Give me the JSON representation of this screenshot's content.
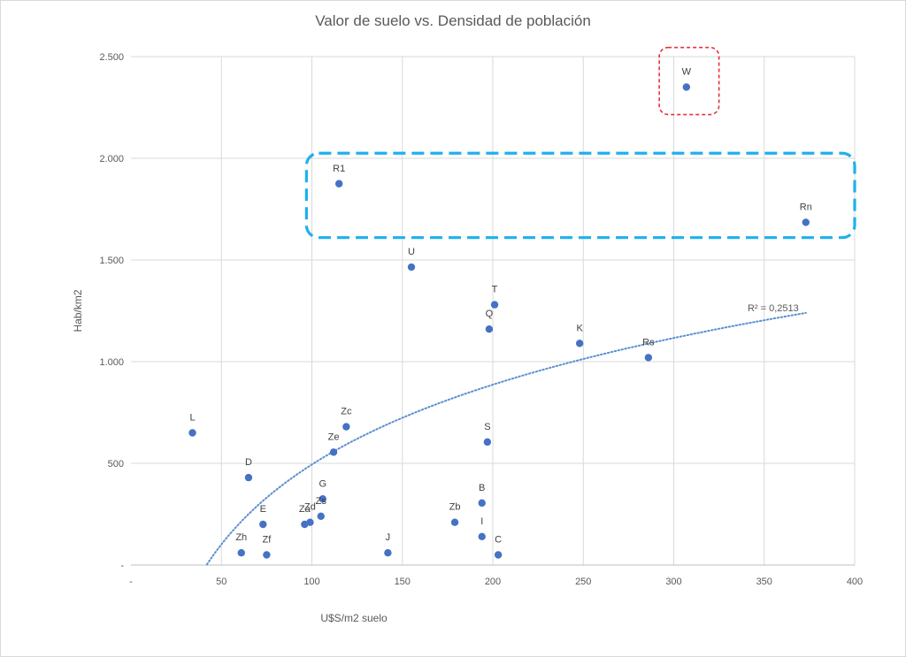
{
  "chart_data": {
    "type": "scatter",
    "title": "Valor de suelo vs. Densidad de población",
    "xlabel": "U$S/m2 suelo",
    "ylabel": "Hab/km2",
    "xlim": [
      0,
      400
    ],
    "ylim": [
      0,
      2500
    ],
    "x_ticks": [
      {
        "value": 0,
        "label": "-"
      },
      {
        "value": 50,
        "label": "50"
      },
      {
        "value": 100,
        "label": "100"
      },
      {
        "value": 150,
        "label": "150"
      },
      {
        "value": 200,
        "label": "200"
      },
      {
        "value": 250,
        "label": "250"
      },
      {
        "value": 300,
        "label": "300"
      },
      {
        "value": 350,
        "label": "350"
      },
      {
        "value": 400,
        "label": "400"
      }
    ],
    "y_ticks": [
      {
        "value": 0,
        "label": "-"
      },
      {
        "value": 500,
        "label": "500"
      },
      {
        "value": 1000,
        "label": "1.000"
      },
      {
        "value": 1500,
        "label": "1.500"
      },
      {
        "value": 2000,
        "label": "2.000"
      },
      {
        "value": 2500,
        "label": "2.500"
      }
    ],
    "grid": true,
    "point_color": "#4472c4",
    "points": [
      {
        "label": "W",
        "x": 307,
        "y": 2350
      },
      {
        "label": "R1",
        "x": 115,
        "y": 1875
      },
      {
        "label": "Rn",
        "x": 373,
        "y": 1685
      },
      {
        "label": "U",
        "x": 155,
        "y": 1465
      },
      {
        "label": "T",
        "x": 201,
        "y": 1280
      },
      {
        "label": "Q",
        "x": 198,
        "y": 1160
      },
      {
        "label": "K",
        "x": 248,
        "y": 1090
      },
      {
        "label": "Rs",
        "x": 286,
        "y": 1020
      },
      {
        "label": "L",
        "x": 34,
        "y": 650
      },
      {
        "label": "Zc",
        "x": 119,
        "y": 680
      },
      {
        "label": "S",
        "x": 197,
        "y": 605
      },
      {
        "label": "Ze",
        "x": 112,
        "y": 555
      },
      {
        "label": "D",
        "x": 65,
        "y": 430
      },
      {
        "label": "G",
        "x": 106,
        "y": 325
      },
      {
        "label": "B",
        "x": 194,
        "y": 305
      },
      {
        "label": "Zs",
        "x": 105,
        "y": 240
      },
      {
        "label": "Zd",
        "x": 99,
        "y": 210
      },
      {
        "label": "Za",
        "x": 96,
        "y": 200
      },
      {
        "label": "E",
        "x": 73,
        "y": 200
      },
      {
        "label": "Zb",
        "x": 179,
        "y": 210
      },
      {
        "label": "I",
        "x": 194,
        "y": 140
      },
      {
        "label": "Zh",
        "x": 61,
        "y": 60
      },
      {
        "label": "Zf",
        "x": 75,
        "y": 50
      },
      {
        "label": "J",
        "x": 142,
        "y": 60
      },
      {
        "label": "C",
        "x": 203,
        "y": 50
      }
    ],
    "trendline": {
      "type": "logarithmic",
      "color": "#5b8fd0",
      "x_range": [
        42,
        373
      ],
      "anchor_points": [
        [
          42,
          0
        ],
        [
          100,
          500
        ],
        [
          250,
          1010
        ],
        [
          373,
          1240
        ]
      ],
      "r2_label": "R² = 0,2513"
    },
    "highlights": [
      {
        "style": "red-dashed",
        "color": "#e8303a",
        "contains": [
          "W"
        ],
        "x_range": [
          292,
          325
        ],
        "y_range": [
          2215,
          2545
        ]
      },
      {
        "style": "blue-dashed",
        "color": "#1fb0ec",
        "contains": [
          "R1",
          "Rn"
        ],
        "x_range": [
          97,
          400
        ],
        "y_range": [
          1610,
          2025
        ]
      }
    ]
  }
}
